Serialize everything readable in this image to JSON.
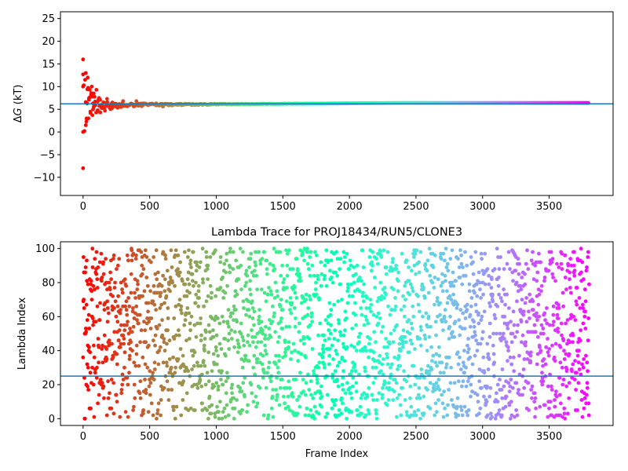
{
  "chart_data": [
    {
      "type": "scatter",
      "title": "",
      "xlabel": "",
      "ylabel": "ΔG (kT)",
      "ylabel_main": "Δ",
      "ylabel_italic": "G",
      "ylabel_unit": " (kT)",
      "xlim": [
        -170,
        3980
      ],
      "ylim": [
        -14,
        26.5
      ],
      "xticks": [
        0,
        500,
        1000,
        1500,
        2000,
        2500,
        3000,
        3500
      ],
      "yticks": [
        -10,
        -5,
        0,
        5,
        10,
        15,
        20,
        25
      ],
      "xtick_labels": [
        "0",
        "500",
        "1000",
        "1500",
        "2000",
        "2500",
        "3000",
        "3500"
      ],
      "ytick_labels": [
        "−10",
        "−5",
        "0",
        "5",
        "10",
        "15",
        "20",
        "25"
      ],
      "hline": 6.2,
      "hline_color": "#1f77b4",
      "colormap": "rainbow (reversed, red at frame 0 to violet at last frame)",
      "frames": 3800,
      "early_points": [
        [
          0,
          16
        ],
        [
          0,
          12.7
        ],
        [
          0,
          10
        ],
        [
          0,
          0
        ],
        [
          0,
          -8
        ],
        [
          5,
          10.3
        ],
        [
          10,
          0.2
        ],
        [
          15,
          11.5
        ],
        [
          20,
          1.5
        ],
        [
          20,
          13
        ],
        [
          25,
          2.3
        ],
        [
          30,
          6.3
        ],
        [
          35,
          12
        ],
        [
          40,
          3
        ],
        [
          45,
          7.5
        ],
        [
          50,
          9.3
        ],
        [
          55,
          4.5
        ],
        [
          60,
          8.2
        ],
        [
          65,
          10
        ],
        [
          70,
          3.7
        ],
        [
          75,
          5
        ],
        [
          80,
          8.5
        ],
        [
          90,
          6.7
        ],
        [
          100,
          9.3
        ],
        [
          110,
          4.8
        ],
        [
          120,
          7.5
        ],
        [
          130,
          4.3
        ],
        [
          140,
          6
        ],
        [
          160,
          5.2
        ],
        [
          180,
          7.3
        ],
        [
          200,
          5.3
        ],
        [
          220,
          6.5
        ],
        [
          250,
          5.5
        ],
        [
          300,
          6.8
        ],
        [
          350,
          6
        ],
        [
          400,
          6.8
        ],
        [
          450,
          6.3
        ],
        [
          500,
          6.2
        ],
        [
          550,
          6.3
        ],
        [
          600,
          5.6
        ]
      ],
      "converged_value_early": 5.9,
      "converged_value_late": 6.4
    },
    {
      "type": "scatter",
      "title": "Lambda Trace for PROJ18434/RUN5/CLONE3",
      "xlabel": "Frame Index",
      "ylabel": "Lambda Index",
      "xlim": [
        -170,
        3980
      ],
      "ylim": [
        -4,
        104
      ],
      "xticks": [
        0,
        500,
        1000,
        1500,
        2000,
        2500,
        3000,
        3500
      ],
      "yticks": [
        0,
        20,
        40,
        60,
        80,
        100
      ],
      "xtick_labels": [
        "0",
        "500",
        "1000",
        "1500",
        "2000",
        "2500",
        "3000",
        "3500"
      ],
      "ytick_labels": [
        "0",
        "20",
        "40",
        "60",
        "80",
        "100"
      ],
      "hline": 25,
      "hline_color": "#1f77b4",
      "colormap": "rainbow (reversed, red at frame 0 to violet at last frame)",
      "frames": 3800,
      "lambda_range": [
        0,
        100
      ],
      "distribution": "lambda index uniformly scattered over 0–100 at every frame"
    }
  ]
}
